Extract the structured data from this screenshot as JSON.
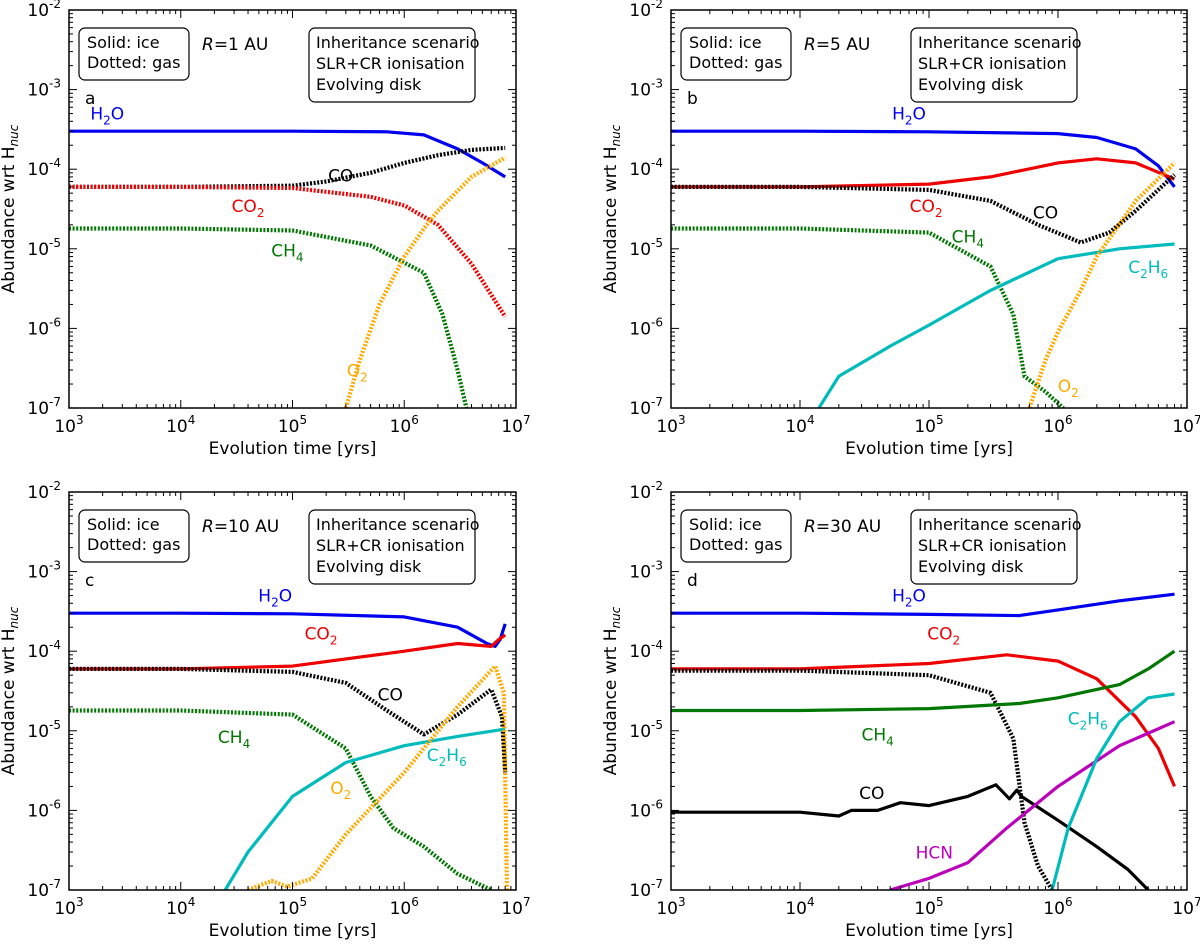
{
  "figure": {
    "xlabel": "Evolution time [yrs]",
    "ylabel": "Abundance wrt H",
    "ylabel_sub": "nuc",
    "legend_box": [
      "Solid: ice",
      "Dotted: gas"
    ],
    "scenario_box": [
      "Inheritance scenario",
      "SLR+CR ionisation",
      "Evolving disk"
    ],
    "x_ticks": [
      {
        "base": "10",
        "exp": "3"
      },
      {
        "base": "10",
        "exp": "4"
      },
      {
        "base": "10",
        "exp": "5"
      },
      {
        "base": "10",
        "exp": "6"
      },
      {
        "base": "10",
        "exp": "7"
      }
    ],
    "y_ticks": [
      {
        "base": "10",
        "exp": "-7"
      },
      {
        "base": "10",
        "exp": "-6"
      },
      {
        "base": "10",
        "exp": "-5"
      },
      {
        "base": "10",
        "exp": "-4"
      },
      {
        "base": "10",
        "exp": "-3"
      },
      {
        "base": "10",
        "exp": "-2"
      }
    ]
  },
  "colors": {
    "H2O": "#0000ee",
    "CO2": "#ee0000",
    "CO": "#000000",
    "CH4": "#007700",
    "O2": "#ffaa00",
    "C2H6": "#00bbbb",
    "HCN": "#bb00bb"
  },
  "chart_data": [
    {
      "type": "line",
      "panel": "a",
      "radius_label": "R=1 AU",
      "radius_var": "R",
      "radius_value": "=1 AU",
      "xscale": "log",
      "yscale": "log",
      "xlim": [
        1000,
        10000000
      ],
      "ylim": [
        1e-07,
        0.01
      ],
      "series": [
        {
          "name": "H2O",
          "label_main": "H",
          "label_sub": "2",
          "label_tail": "O",
          "phase": "ice",
          "color": "#0000ee",
          "x": [
            1000,
            10000,
            100000,
            700000,
            1500000,
            3000000,
            5000000,
            8000000
          ],
          "y": [
            0.0003,
            0.0003,
            0.0003,
            0.000295,
            0.00027,
            0.00018,
            0.00012,
            8e-05
          ],
          "label_pos": [
            2200,
            0.00042
          ]
        },
        {
          "name": "CO",
          "label_main": "CO",
          "label_sub": "",
          "label_tail": "",
          "phase": "gas",
          "color": "#000000",
          "x": [
            1000,
            10000,
            100000,
            200000,
            500000,
            1000000,
            2000000,
            4000000,
            8000000
          ],
          "y": [
            6e-05,
            6e-05,
            6.2e-05,
            7e-05,
            9e-05,
            0.00012,
            0.00015,
            0.000175,
            0.000185
          ],
          "label_pos": [
            270000,
            7e-05
          ]
        },
        {
          "name": "CO2",
          "label_main": "CO",
          "label_sub": "2",
          "label_tail": "",
          "phase": "gas",
          "color": "#ee0000",
          "x": [
            1000,
            10000,
            100000,
            500000,
            1000000,
            2000000,
            4000000,
            8000000
          ],
          "y": [
            6e-05,
            6e-05,
            5.8e-05,
            4.5e-05,
            3.5e-05,
            2e-05,
            6.5e-06,
            1.4e-06
          ],
          "label_pos": [
            40000,
            2.9e-05
          ]
        },
        {
          "name": "CH4",
          "label_main": "CH",
          "label_sub": "4",
          "label_tail": "",
          "phase": "gas",
          "color": "#007700",
          "x": [
            1000,
            10000,
            100000,
            500000,
            1500000,
            2200000,
            3000000,
            3600000
          ],
          "y": [
            1.8e-05,
            1.8e-05,
            1.7e-05,
            1.1e-05,
            5e-06,
            1.5e-06,
            3e-07,
            1e-07
          ],
          "label_pos": [
            90000,
            8e-06
          ]
        },
        {
          "name": "O2",
          "label_main": "O",
          "label_sub": "2",
          "label_tail": "",
          "phase": "gas",
          "color": "#ffaa00",
          "x": [
            300000,
            400000,
            600000,
            1000000,
            1500000,
            2000000,
            4000000,
            8000000
          ],
          "y": [
            1e-07,
            4e-07,
            2e-06,
            8e-06,
            1.8e-05,
            3e-05,
            8e-05,
            0.00014
          ],
          "label_pos": [
            380000,
            2.5e-07
          ]
        }
      ]
    },
    {
      "type": "line",
      "panel": "b",
      "radius_label": "R=5 AU",
      "radius_var": "R",
      "radius_value": "=5 AU",
      "xscale": "log",
      "yscale": "log",
      "xlim": [
        1000,
        10000000
      ],
      "ylim": [
        1e-07,
        0.01
      ],
      "series": [
        {
          "name": "H2O",
          "label_main": "H",
          "label_sub": "2",
          "label_tail": "O",
          "phase": "ice",
          "color": "#0000ee",
          "x": [
            1000,
            10000,
            100000,
            1000000,
            2000000,
            4000000,
            6000000,
            8000000
          ],
          "y": [
            0.0003,
            0.0003,
            0.000295,
            0.00028,
            0.00025,
            0.00018,
            0.00011,
            6e-05
          ],
          "label_pos": [
            70000,
            0.00042
          ]
        },
        {
          "name": "CO2",
          "label_main": "CO",
          "label_sub": "2",
          "label_tail": "",
          "phase": "ice",
          "color": "#ee0000",
          "x": [
            1000,
            10000,
            100000,
            300000,
            1000000,
            2000000,
            4000000,
            8000000
          ],
          "y": [
            6e-05,
            6e-05,
            6.5e-05,
            8e-05,
            0.00012,
            0.000135,
            0.00012,
            7.5e-05
          ],
          "label_pos": [
            95000,
            2.9e-05
          ]
        },
        {
          "name": "CO",
          "label_main": "CO",
          "label_sub": "",
          "label_tail": "",
          "phase": "gas",
          "color": "#000000",
          "x": [
            1000,
            10000,
            100000,
            300000,
            700000,
            1500000,
            2500000,
            4000000,
            8000000
          ],
          "y": [
            6e-05,
            6e-05,
            5.5e-05,
            4e-05,
            2e-05,
            1.2e-05,
            1.6e-05,
            3e-05,
            8.5e-05
          ],
          "label_pos": [
            800000,
            2.4e-05
          ]
        },
        {
          "name": "CH4",
          "label_main": "CH",
          "label_sub": "4",
          "label_tail": "",
          "phase": "gas",
          "color": "#007700",
          "x": [
            1000,
            10000,
            100000,
            300000,
            450000,
            550000,
            800000,
            1100000
          ],
          "y": [
            1.8e-05,
            1.8e-05,
            1.6e-05,
            6e-06,
            1.5e-06,
            2.5e-07,
            1.6e-07,
            1e-07
          ],
          "label_pos": [
            200000,
            1.2e-05
          ]
        },
        {
          "name": "C2H6",
          "label_main": "C",
          "label_sub": "2",
          "label_tail": "H",
          "label_sub2": "6",
          "phase": "ice",
          "color": "#00bbbb",
          "x": [
            14000,
            20000,
            50000,
            100000,
            300000,
            1000000,
            3000000,
            8000000
          ],
          "y": [
            1e-07,
            2.5e-07,
            6e-07,
            1.1e-06,
            3e-06,
            7.5e-06,
            1e-05,
            1.15e-05
          ],
          "label_pos": [
            5000000,
            5e-06
          ]
        },
        {
          "name": "O2",
          "label_main": "O",
          "label_sub": "2",
          "label_tail": "",
          "phase": "gas",
          "color": "#ffaa00",
          "x": [
            600000,
            800000,
            1000000,
            1500000,
            2000000,
            4000000,
            8000000
          ],
          "y": [
            1e-07,
            4e-07,
            9e-07,
            3e-06,
            8e-06,
            4e-05,
            0.00012
          ],
          "label_pos": [
            1200000,
            1.6e-07
          ]
        }
      ]
    },
    {
      "type": "line",
      "panel": "c",
      "radius_label": "R=10 AU",
      "radius_var": "R",
      "radius_value": "=10 AU",
      "xscale": "log",
      "yscale": "log",
      "xlim": [
        1000,
        10000000
      ],
      "ylim": [
        1e-07,
        0.01
      ],
      "series": [
        {
          "name": "H2O",
          "label_main": "H",
          "label_sub": "2",
          "label_tail": "O",
          "phase": "ice",
          "color": "#0000ee",
          "x": [
            1000,
            10000,
            100000,
            1000000,
            3000000,
            5500000,
            6500000,
            7200000,
            8000000
          ],
          "y": [
            0.0003,
            0.0003,
            0.000295,
            0.00027,
            0.0002,
            0.000125,
            0.000115,
            0.00014,
            0.00022
          ],
          "label_pos": [
            70000,
            0.00042
          ]
        },
        {
          "name": "CO2",
          "label_main": "CO",
          "label_sub": "2",
          "label_tail": "",
          "phase": "ice",
          "color": "#ee0000",
          "x": [
            1000,
            10000,
            100000,
            1000000,
            3000000,
            6000000,
            7000000,
            8000000
          ],
          "y": [
            6e-05,
            6e-05,
            6.5e-05,
            0.0001,
            0.000125,
            0.000115,
            0.00014,
            0.00016
          ],
          "label_pos": [
            180000,
            0.00014
          ]
        },
        {
          "name": "CO",
          "label_main": "CO",
          "label_sub": "",
          "label_tail": "",
          "phase": "gas",
          "color": "#000000",
          "x": [
            1000,
            10000,
            100000,
            300000,
            700000,
            1500000,
            3000000,
            6000000,
            7500000,
            8000000
          ],
          "y": [
            6e-05,
            6e-05,
            5.5e-05,
            4e-05,
            1.8e-05,
            9e-06,
            1.6e-05,
            3.3e-05,
            1.5e-05,
            3e-06
          ],
          "label_pos": [
            750000,
            2.4e-05
          ]
        },
        {
          "name": "CH4",
          "label_main": "CH",
          "label_sub": "4",
          "label_tail": "",
          "phase": "gas",
          "color": "#007700",
          "x": [
            1000,
            10000,
            100000,
            300000,
            500000,
            800000,
            1500000,
            3000000,
            6000000
          ],
          "y": [
            1.8e-05,
            1.8e-05,
            1.6e-05,
            6e-06,
            1.5e-06,
            6e-07,
            3.5e-07,
            1.6e-07,
            1e-07
          ],
          "label_pos": [
            30000,
            7e-06
          ]
        },
        {
          "name": "C2H6",
          "label_main": "C",
          "label_sub": "2",
          "label_tail": "H",
          "label_sub2": "6",
          "phase": "ice",
          "color": "#00bbbb",
          "x": [
            25000,
            40000,
            100000,
            300000,
            1000000,
            3000000,
            8000000
          ],
          "y": [
            1e-07,
            3e-07,
            1.5e-06,
            4e-06,
            6.5e-06,
            8.5e-06,
            1.05e-05
          ],
          "label_pos": [
            2400000,
            4.2e-06
          ]
        },
        {
          "name": "O2",
          "label_main": "O",
          "label_sub": "2",
          "label_tail": "",
          "phase": "gas",
          "color": "#ffaa00",
          "x": [
            40000,
            65000,
            90000,
            150000,
            300000,
            1000000,
            3000000,
            6500000,
            7800000,
            8300000
          ],
          "y": [
            1e-07,
            1.3e-07,
            1.1e-07,
            1.4e-07,
            5e-07,
            3e-06,
            2e-05,
            6.5e-05,
            3e-05,
            1e-07
          ],
          "label_pos": [
            270000,
            1.6e-06
          ]
        }
      ]
    },
    {
      "type": "line",
      "panel": "d",
      "radius_label": "R=30 AU",
      "radius_var": "R",
      "radius_value": "=30 AU",
      "xscale": "log",
      "yscale": "log",
      "xlim": [
        1000,
        10000000
      ],
      "ylim": [
        1e-07,
        0.01
      ],
      "series": [
        {
          "name": "H2O",
          "label_main": "H",
          "label_sub": "2",
          "label_tail": "O",
          "phase": "ice",
          "color": "#0000ee",
          "x": [
            1000,
            10000,
            100000,
            500000,
            1000000,
            3000000,
            8000000
          ],
          "y": [
            0.0003,
            0.0003,
            0.00029,
            0.00028,
            0.00033,
            0.00043,
            0.00052
          ],
          "label_pos": [
            70000,
            0.00042
          ]
        },
        {
          "name": "CO2",
          "label_main": "CO",
          "label_sub": "2",
          "label_tail": "",
          "phase": "ice",
          "color": "#ee0000",
          "x": [
            1000,
            10000,
            100000,
            400000,
            1000000,
            2000000,
            4000000,
            6000000,
            8000000
          ],
          "y": [
            6e-05,
            6e-05,
            7e-05,
            9e-05,
            7.5e-05,
            4.5e-05,
            1.5e-05,
            6e-06,
            2e-06
          ],
          "label_pos": [
            130000,
            0.00014
          ]
        },
        {
          "name": "CO_gas",
          "label_main": "",
          "label_sub": "",
          "label_tail": "",
          "phase": "gas",
          "color": "#000000",
          "x": [
            1000,
            10000,
            100000,
            300000,
            450000,
            550000,
            700000,
            900000
          ],
          "y": [
            5.7e-05,
            5.7e-05,
            5e-05,
            3e-05,
            8e-06,
            7e-07,
            2e-07,
            1e-07
          ],
          "label_pos": null
        },
        {
          "name": "CH4",
          "label_main": "CH",
          "label_sub": "4",
          "label_tail": "",
          "phase": "ice",
          "color": "#007700",
          "x": [
            1000,
            10000,
            100000,
            500000,
            1000000,
            3000000,
            5000000,
            8000000
          ],
          "y": [
            1.8e-05,
            1.8e-05,
            1.9e-05,
            2.2e-05,
            2.6e-05,
            3.8e-05,
            6e-05,
            0.0001
          ],
          "label_pos": [
            40000,
            7.5e-06
          ]
        },
        {
          "name": "CO",
          "label_main": "CO",
          "label_sub": "",
          "label_tail": "",
          "phase": "ice",
          "color": "#000000",
          "x": [
            1000,
            10000,
            20000,
            25000,
            40000,
            60000,
            100000,
            200000,
            330000,
            420000,
            480000,
            520000,
            1000000,
            2000000,
            3500000,
            5000000
          ],
          "y": [
            9.5e-07,
            9.5e-07,
            8.5e-07,
            1e-06,
            1e-06,
            1.25e-06,
            1.15e-06,
            1.5e-06,
            2.1e-06,
            1.4e-06,
            1.8e-06,
            1.5e-06,
            7.5e-07,
            3.5e-07,
            1.8e-07,
            1e-07
          ],
          "label_pos": [
            36000,
            1.4e-06
          ]
        },
        {
          "name": "HCN",
          "label_main": "HCN",
          "label_sub": "",
          "label_tail": "",
          "phase": "ice",
          "color": "#bb00bb",
          "x": [
            50000,
            100000,
            200000,
            400000,
            1000000,
            3000000,
            8000000
          ],
          "y": [
            1e-07,
            1.4e-07,
            2.2e-07,
            6e-07,
            2e-06,
            6.5e-06,
            1.3e-05
          ],
          "label_pos": [
            110000,
            2.5e-07
          ]
        },
        {
          "name": "C2H6",
          "label_main": "C",
          "label_sub": "2",
          "label_tail": "H",
          "label_sub2": "6",
          "phase": "ice",
          "color": "#00bbbb",
          "x": [
            900000,
            1200000,
            2000000,
            3000000,
            5000000,
            8000000
          ],
          "y": [
            1e-07,
            6e-07,
            4.5e-06,
            1.3e-05,
            2.6e-05,
            2.9e-05
          ],
          "label_pos": [
            1700000,
            1.2e-05
          ]
        }
      ]
    }
  ]
}
